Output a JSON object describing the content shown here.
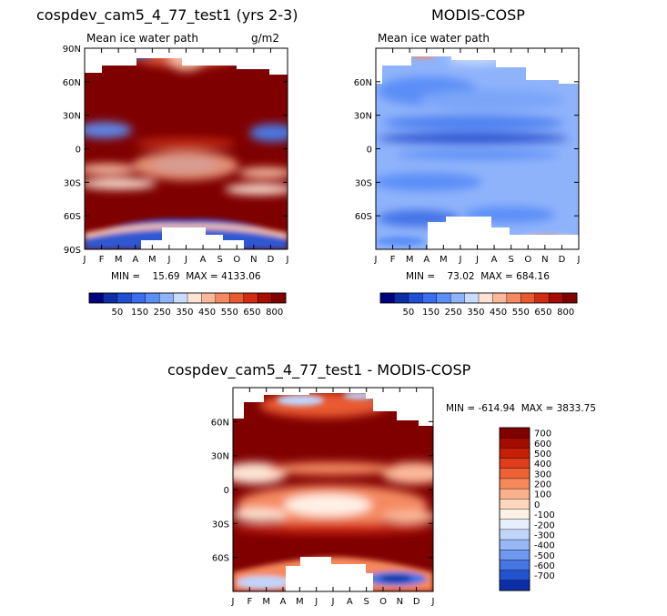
{
  "chart_data": [
    {
      "id": "model",
      "type": "heatmap",
      "title": "cospdev_cam5_4_77_test1 (yrs 2-3)",
      "subtitle": "Mean ice water path",
      "units": "g/m2",
      "x_ticks": [
        "J",
        "F",
        "M",
        "A",
        "M",
        "J",
        "J",
        "A",
        "S",
        "O",
        "N",
        "D",
        "J"
      ],
      "y_ticks": [
        "90N",
        "60N",
        "30N",
        "0",
        "30S",
        "60S",
        "90S"
      ],
      "y_tick_values": [
        90,
        60,
        30,
        0,
        -30,
        -60,
        -90
      ],
      "ylim": [
        -90,
        90
      ],
      "stats": "MIN =    15.69  MAX = 4133.06",
      "colorbar": {
        "orientation": "horizontal",
        "labels": [
          "50",
          "150",
          "250",
          "350",
          "450",
          "550",
          "650",
          "800"
        ],
        "colors": [
          "#00007f",
          "#0d2fa5",
          "#1f4fd3",
          "#3a6ef0",
          "#5c8ef7",
          "#8fb3fb",
          "#c9dcfd",
          "#fde3d3",
          "#fbb89a",
          "#f58a62",
          "#ea5a32",
          "#d12c12",
          "#a80d02",
          "#800000"
        ]
      }
    },
    {
      "id": "obs",
      "type": "heatmap",
      "title": "MODIS-COSP",
      "subtitle": "Mean ice water path",
      "x_ticks": [
        "J",
        "F",
        "M",
        "A",
        "M",
        "J",
        "J",
        "A",
        "S",
        "O",
        "N",
        "D",
        "J"
      ],
      "y_ticks": [
        "60N",
        "30N",
        "0",
        "30S",
        "60S"
      ],
      "y_tick_values": [
        60,
        30,
        0,
        -30,
        -60
      ],
      "ylim": [
        -90,
        90
      ],
      "stats": "MIN =    73.02  MAX = 684.16",
      "colorbar": {
        "orientation": "horizontal",
        "labels": [
          "50",
          "150",
          "250",
          "350",
          "450",
          "550",
          "650",
          "800"
        ],
        "colors": [
          "#00007f",
          "#0d2fa5",
          "#1f4fd3",
          "#3a6ef0",
          "#5c8ef7",
          "#8fb3fb",
          "#c9dcfd",
          "#fde3d3",
          "#fbb89a",
          "#f58a62",
          "#ea5a32",
          "#d12c12",
          "#a80d02",
          "#800000"
        ]
      }
    },
    {
      "id": "diff",
      "type": "heatmap",
      "title": "cospdev_cam5_4_77_test1 - MODIS-COSP",
      "x_ticks": [
        "J",
        "F",
        "M",
        "A",
        "M",
        "J",
        "J",
        "A",
        "S",
        "O",
        "N",
        "D",
        "J"
      ],
      "y_ticks": [
        "60N",
        "30N",
        "0",
        "30S",
        "60S"
      ],
      "y_tick_values": [
        60,
        30,
        0,
        -30,
        -60
      ],
      "ylim": [
        -90,
        90
      ],
      "stats": "MIN = -614.94  MAX = 3833.75",
      "colorbar": {
        "orientation": "vertical",
        "labels": [
          "700",
          "600",
          "500",
          "400",
          "300",
          "200",
          "100",
          "0",
          "-100",
          "-200",
          "-300",
          "-400",
          "-500",
          "-600",
          "-700"
        ],
        "colors": [
          "#800000",
          "#a40c00",
          "#c51f08",
          "#df3d1b",
          "#ef6235",
          "#f6885a",
          "#fab08a",
          "#fdd7bd",
          "#fff1e6",
          "#e7effc",
          "#c0d5fa",
          "#98b8f5",
          "#6f98ef",
          "#4675e4",
          "#2352cf",
          "#0d2fa5"
        ]
      }
    }
  ]
}
